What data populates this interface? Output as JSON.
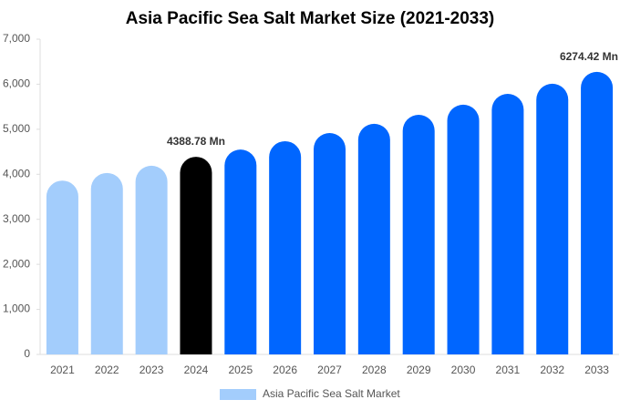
{
  "chart_data": {
    "type": "bar",
    "title": "Asia Pacific Sea Salt Market Size (2021-2033)",
    "categories": [
      "2021",
      "2022",
      "2023",
      "2024",
      "2025",
      "2026",
      "2027",
      "2028",
      "2029",
      "2030",
      "2031",
      "2032",
      "2033"
    ],
    "series": [
      {
        "name": "Asia Pacific Sea Salt Market",
        "color": "#a3cdfc",
        "colors": [
          "#a3cdfc",
          "#a3cdfc",
          "#a3cdfc",
          "#000000",
          "#0066ff",
          "#0066ff",
          "#0066ff",
          "#0066ff",
          "#0066ff",
          "#0066ff",
          "#0066ff",
          "#0066ff",
          "#0066ff"
        ],
        "values": [
          3860,
          4030,
          4190,
          4388.78,
          4550,
          4735,
          4915,
          5120,
          5320,
          5545,
          5785,
          6010,
          6274.42
        ],
        "value_labels": [
          null,
          null,
          null,
          "4388.78 Mn",
          null,
          null,
          null,
          null,
          null,
          null,
          null,
          null,
          "6274.42 Mn"
        ]
      }
    ],
    "ylim": [
      0,
      7000
    ],
    "yticks": [
      0,
      {
        "value": 1000,
        "label": "1,000"
      },
      {
        "value": 2000,
        "label": "2,000"
      },
      {
        "value": 3000,
        "label": "3,000"
      },
      {
        "value": 4000,
        "label": "4,000"
      },
      {
        "value": 5000,
        "label": "5,000"
      },
      {
        "value": 6000,
        "label": "6,000"
      },
      {
        "value": 7000,
        "label": "7,000"
      }
    ],
    "grid": false
  }
}
